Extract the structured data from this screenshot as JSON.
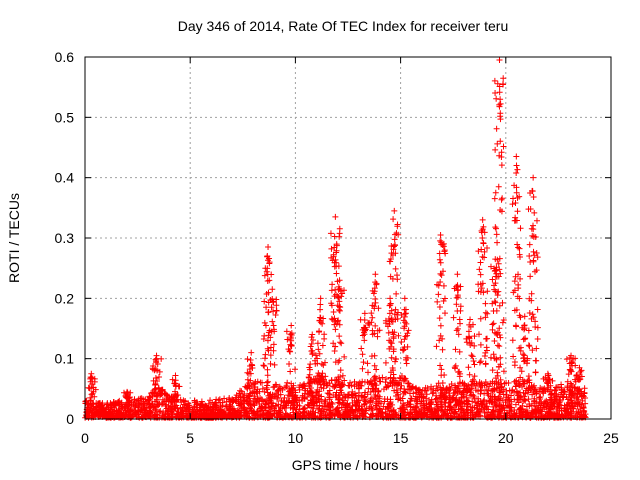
{
  "chart_data": {
    "type": "scatter",
    "title": "Day 346 of 2014, Rate Of TEC Index for receiver teru",
    "xlabel": "GPS time / hours",
    "ylabel": "ROTI / TECUs",
    "xlim": [
      0,
      25
    ],
    "ylim": [
      0,
      0.6
    ],
    "xticks": [
      "0",
      "5",
      "10",
      "15",
      "20",
      "25"
    ],
    "xtick_values": [
      0,
      5,
      10,
      15,
      20,
      25
    ],
    "yticks": [
      "0",
      "0.1",
      "0.2",
      "0.3",
      "0.4",
      "0.5",
      "0.6"
    ],
    "ytick_values": [
      0,
      0.1,
      0.2,
      0.3,
      0.4,
      0.5,
      0.6
    ],
    "grid": true,
    "marker": "+",
    "color": "#ff0000",
    "data_range_hours": [
      0,
      23.8
    ],
    "baseline_envelope": [
      [
        0.0,
        0.03
      ],
      [
        1.0,
        0.025
      ],
      [
        2.0,
        0.03
      ],
      [
        3.0,
        0.035
      ],
      [
        3.4,
        0.06
      ],
      [
        4.0,
        0.035
      ],
      [
        5.0,
        0.03
      ],
      [
        6.0,
        0.03
      ],
      [
        7.0,
        0.035
      ],
      [
        7.5,
        0.05
      ],
      [
        8.0,
        0.06
      ],
      [
        9.0,
        0.06
      ],
      [
        10.0,
        0.05
      ],
      [
        11.0,
        0.07
      ],
      [
        12.0,
        0.07
      ],
      [
        13.0,
        0.06
      ],
      [
        14.0,
        0.07
      ],
      [
        15.0,
        0.07
      ],
      [
        16.0,
        0.05
      ],
      [
        17.0,
        0.06
      ],
      [
        18.0,
        0.06
      ],
      [
        19.0,
        0.06
      ],
      [
        20.0,
        0.06
      ],
      [
        21.0,
        0.06
      ],
      [
        22.0,
        0.05
      ],
      [
        23.0,
        0.06
      ],
      [
        23.8,
        0.05
      ]
    ],
    "spikes": [
      {
        "x": 0.3,
        "y": 0.075
      },
      {
        "x": 2.0,
        "y": 0.045
      },
      {
        "x": 3.4,
        "y": 0.105
      },
      {
        "x": 4.3,
        "y": 0.072
      },
      {
        "x": 7.9,
        "y": 0.11
      },
      {
        "x": 8.7,
        "y": 0.285
      },
      {
        "x": 8.9,
        "y": 0.215
      },
      {
        "x": 9.8,
        "y": 0.155
      },
      {
        "x": 10.8,
        "y": 0.14
      },
      {
        "x": 11.2,
        "y": 0.2
      },
      {
        "x": 11.9,
        "y": 0.335
      },
      {
        "x": 12.1,
        "y": 0.23
      },
      {
        "x": 13.3,
        "y": 0.175
      },
      {
        "x": 13.8,
        "y": 0.24
      },
      {
        "x": 14.5,
        "y": 0.2
      },
      {
        "x": 14.7,
        "y": 0.345
      },
      {
        "x": 15.2,
        "y": 0.2
      },
      {
        "x": 16.9,
        "y": 0.305
      },
      {
        "x": 17.7,
        "y": 0.24
      },
      {
        "x": 18.3,
        "y": 0.165
      },
      {
        "x": 18.9,
        "y": 0.33
      },
      {
        "x": 19.5,
        "y": 0.265
      },
      {
        "x": 19.7,
        "y": 0.595
      },
      {
        "x": 20.5,
        "y": 0.435
      },
      {
        "x": 20.9,
        "y": 0.17
      },
      {
        "x": 21.3,
        "y": 0.4
      },
      {
        "x": 22.0,
        "y": 0.075
      },
      {
        "x": 23.1,
        "y": 0.105
      },
      {
        "x": 23.5,
        "y": 0.085
      }
    ]
  }
}
